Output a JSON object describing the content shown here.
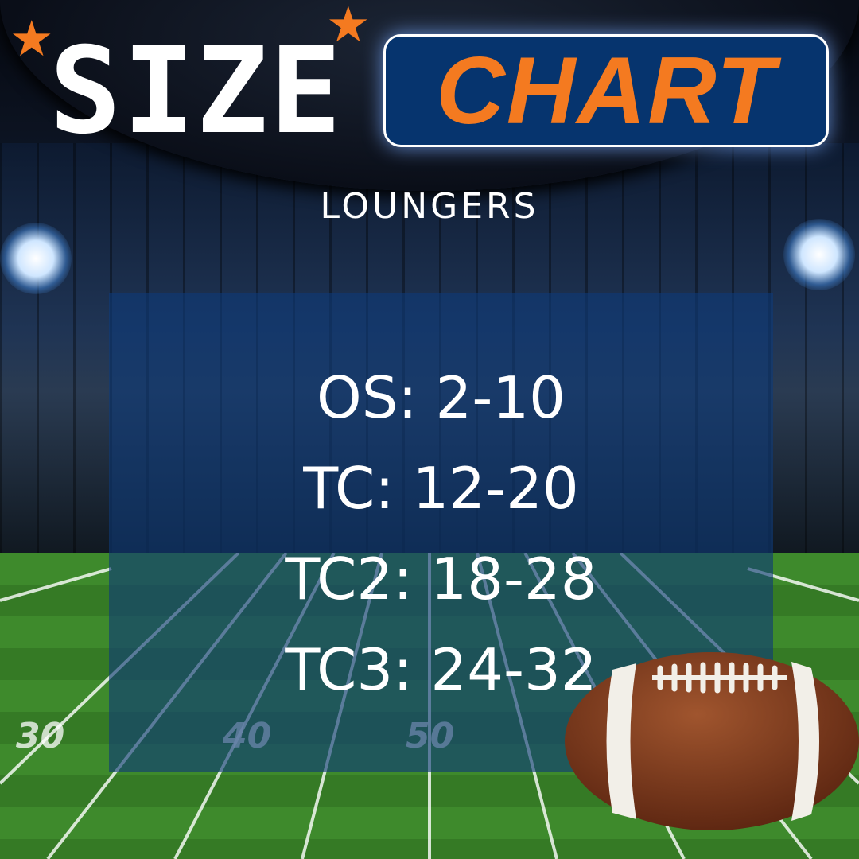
{
  "header": {
    "title_left": "SIZE",
    "title_right": "CHART",
    "subtitle": "LOUNGERS"
  },
  "sizes": [
    {
      "label": "OS: 2-10"
    },
    {
      "label": "TC: 12-20"
    },
    {
      "label": "TC2: 18-28"
    },
    {
      "label": "TC3: 24-32"
    }
  ],
  "field_numbers": [
    "30",
    "40",
    "50"
  ],
  "colors": {
    "accent_orange": "#f47a20",
    "box_blue": "#06346e",
    "panel_blue": "#0e3a78",
    "text": "#ffffff"
  },
  "icons": {
    "star": "star-icon",
    "ball": "football-icon"
  }
}
